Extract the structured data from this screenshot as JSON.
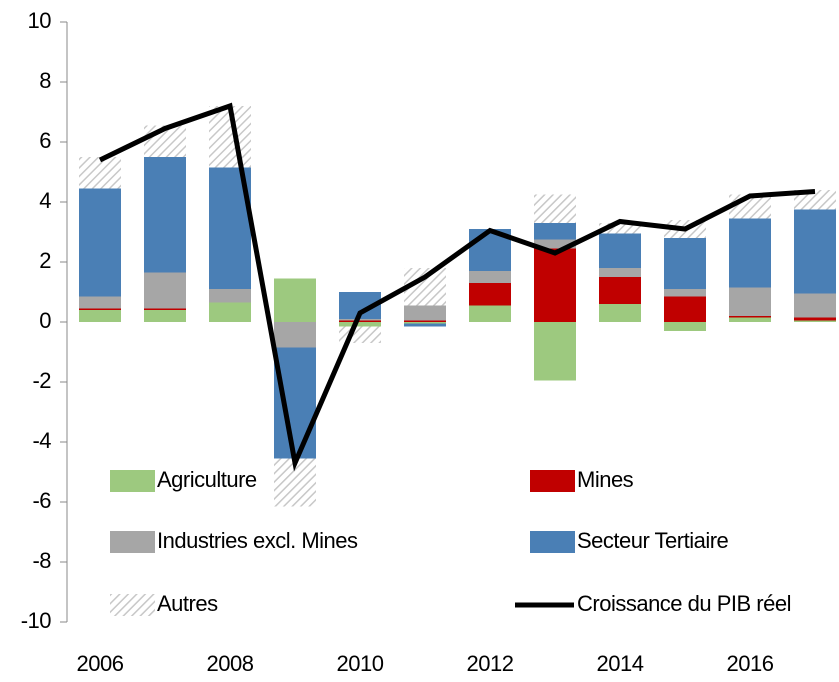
{
  "chart_data": {
    "type": "bar",
    "stacked": true,
    "categories": [
      "2006",
      null,
      "2008",
      null,
      "2010",
      null,
      "2012",
      null,
      "2014",
      null,
      "2016",
      null
    ],
    "ylim": [
      -10,
      10
    ],
    "yticks": [
      -10,
      -8,
      -6,
      -4,
      -2,
      0,
      2,
      4,
      6,
      8,
      10
    ],
    "series": [
      {
        "name": "Agriculture",
        "color": "#9dc97f",
        "values": [
          0.4,
          0.4,
          0.65,
          1.45,
          -0.15,
          -0.05,
          0.55,
          -1.95,
          0.6,
          -0.3,
          0.15,
          0.05
        ]
      },
      {
        "name": "Mines",
        "color": "#c00000",
        "values": [
          0.05,
          0.05,
          0,
          0,
          0.05,
          0.05,
          0.75,
          2.45,
          0.9,
          0.85,
          0.05,
          0.1
        ]
      },
      {
        "name": "Industries excl. Mines",
        "color": "#a6a6a6",
        "values": [
          0.4,
          1.2,
          0.45,
          -0.85,
          0.05,
          0.5,
          0.4,
          0.3,
          0.3,
          0.25,
          0.95,
          0.8
        ]
      },
      {
        "name": "Secteur Tertiaire",
        "color": "#4a7fb5",
        "values": [
          3.6,
          3.85,
          4.05,
          -3.7,
          0.9,
          -0.1,
          1.4,
          0.55,
          1.15,
          1.7,
          2.3,
          2.8
        ]
      },
      {
        "name": "Autres",
        "color": "#c8c8c8",
        "pattern": "hatch",
        "values": [
          1.05,
          1.05,
          2.05,
          -1.6,
          -0.55,
          1.25,
          0,
          0.95,
          0.35,
          0.6,
          0.8,
          0.65
        ]
      },
      {
        "name": "Croissance du PIB réel",
        "color": "#000000",
        "type": "line",
        "values": [
          5.4,
          6.45,
          7.2,
          -4.7,
          0.3,
          1.5,
          3.05,
          2.3,
          3.35,
          3.1,
          4.2,
          4.35
        ]
      }
    ]
  }
}
